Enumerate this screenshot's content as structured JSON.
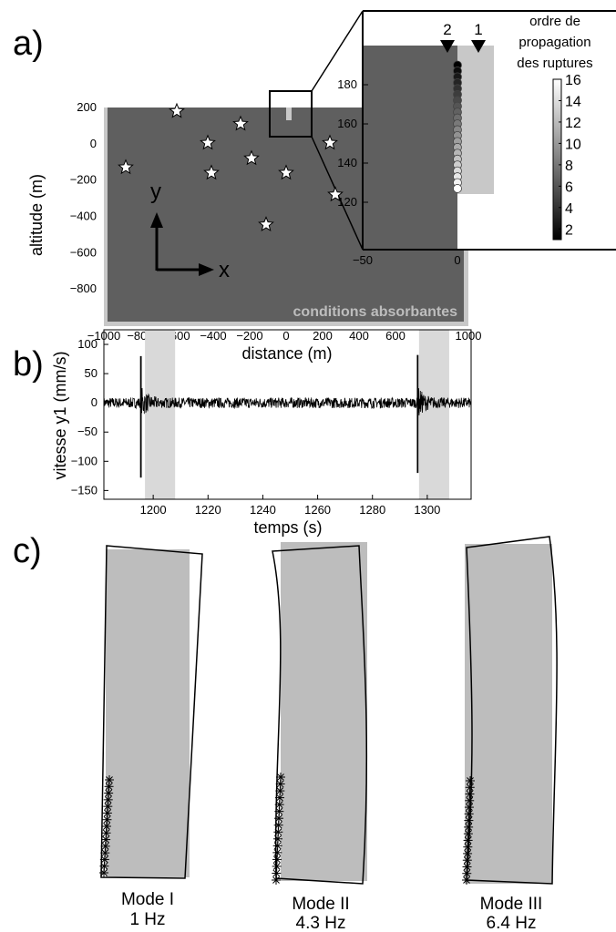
{
  "panels": {
    "a": {
      "letter": "a)"
    },
    "b": {
      "letter": "b)"
    },
    "c": {
      "letter": "c)"
    }
  },
  "colors": {
    "block_dark": "#5f5f5f",
    "block_light": "#c8c8c8",
    "shade": "#d9d9d9",
    "mode_fill": "#bdbdbd"
  },
  "chart_data": [
    {
      "type": "scatter",
      "panel": "a",
      "xlabel": "distance (m)",
      "ylabel": "altitude (m)",
      "xlim": [
        -1000,
        1000
      ],
      "ylim": [
        -980,
        200
      ],
      "xticks": [
        -1000,
        -800,
        -600,
        -400,
        -200,
        0,
        200,
        400,
        600,
        800,
        1000
      ],
      "yticks": [
        200,
        0,
        -200,
        -400,
        -600,
        -800
      ],
      "xtick_labels": [
        "−1000",
        "−800",
        "−600",
        "−400",
        "−200",
        "0",
        "200",
        "400",
        "600",
        "800",
        "1000"
      ],
      "ytick_labels": [
        "200",
        "0",
        "−200",
        "−400",
        "−600",
        "−800"
      ],
      "stars": [
        {
          "x": -600,
          "y": 180
        },
        {
          "x": -880,
          "y": -130
        },
        {
          "x": -430,
          "y": 5
        },
        {
          "x": -250,
          "y": 110
        },
        {
          "x": -410,
          "y": -160
        },
        {
          "x": -190,
          "y": -80
        },
        {
          "x": 240,
          "y": 5
        },
        {
          "x": 0,
          "y": -160
        },
        {
          "x": 270,
          "y": -280
        },
        {
          "x": -110,
          "y": -445
        }
      ],
      "axis_arrows": {
        "y": "y",
        "x": "x"
      },
      "annotation": "conditions absorbantes"
    },
    {
      "type": "scatter",
      "panel": "a-inset",
      "xlim": [
        -50,
        0
      ],
      "ylim": [
        100,
        200
      ],
      "xticks": [
        -50,
        0
      ],
      "yticks": [
        120,
        140,
        160,
        180
      ],
      "xtick_labels": [
        "−50",
        "0"
      ],
      "ytick_labels": [
        "120",
        "140",
        "160",
        "180"
      ],
      "markers": [
        {
          "label": "2",
          "x": 0
        },
        {
          "label": "1",
          "x": 12
        }
      ],
      "rupture_order_y": [
        190,
        187,
        184,
        181,
        178,
        175,
        172,
        169,
        166,
        163,
        160,
        157,
        154,
        151,
        148,
        145,
        142,
        139,
        136,
        133,
        130,
        127
      ],
      "colorbar": {
        "title_lines": [
          "ordre de",
          "propagation",
          "des ruptures"
        ],
        "range": [
          1,
          16
        ],
        "ticks": [
          2,
          4,
          6,
          8,
          10,
          12,
          14,
          16
        ],
        "tick_labels": [
          "2",
          "4",
          "6",
          "8",
          "10",
          "12",
          "14",
          "16"
        ]
      }
    },
    {
      "type": "line",
      "panel": "b",
      "xlabel": "temps (s)",
      "ylabel": "vitesse y1 (mm/s)",
      "xlim": [
        1182,
        1316
      ],
      "ylim": [
        -165,
        125
      ],
      "xticks": [
        1200,
        1220,
        1240,
        1260,
        1280,
        1300
      ],
      "yticks": [
        100,
        50,
        0,
        -50,
        -100,
        -150
      ],
      "xtick_labels": [
        "1200",
        "1220",
        "1240",
        "1260",
        "1280",
        "1300"
      ],
      "ytick_labels": [
        "100",
        "50",
        "0",
        "−50",
        "−100",
        "−150"
      ],
      "noise_amplitude": 9,
      "events": [
        {
          "t": 1195.5,
          "max": 80,
          "min": -128
        },
        {
          "t": 1296.5,
          "max": 82,
          "min": -120
        }
      ],
      "shaded_windows": [
        [
          1197,
          1208
        ],
        [
          1297,
          1308
        ]
      ]
    },
    {
      "type": "line",
      "panel": "c",
      "modes": [
        {
          "name": "Mode I",
          "freq": "1 Hz",
          "shape": "tilt"
        },
        {
          "name": "Mode II",
          "freq": "4.3 Hz",
          "shape": "bend"
        },
        {
          "name": "Mode III",
          "freq": "6.4 Hz",
          "shape": "s-bend"
        }
      ]
    }
  ]
}
